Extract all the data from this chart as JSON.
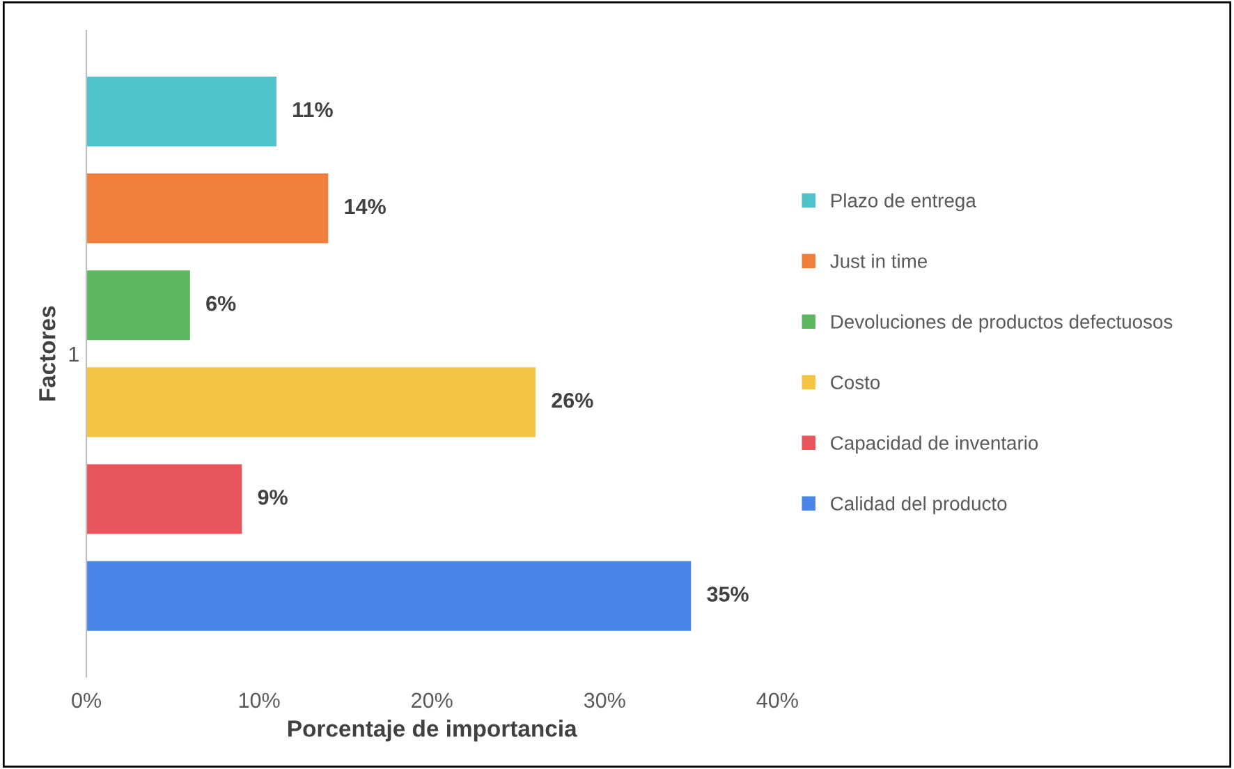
{
  "chart_data": {
    "type": "bar",
    "orientation": "horizontal",
    "xlabel": "Porcentaje de importancia",
    "ylabel": "Factores",
    "categories": [
      "1"
    ],
    "series": [
      {
        "name": "Plazo de entrega",
        "color": "#4fc3cc",
        "values": [
          11
        ],
        "value_labels": [
          "11%"
        ]
      },
      {
        "name": "Just in time",
        "color": "#f07f3c",
        "values": [
          14
        ],
        "value_labels": [
          "14%"
        ]
      },
      {
        "name": "Devoluciones de productos defectuosos",
        "color": "#5cb860",
        "values": [
          6
        ],
        "value_labels": [
          "6%"
        ]
      },
      {
        "name": "Costo",
        "color": "#f5c443",
        "values": [
          26
        ],
        "value_labels": [
          "26%"
        ]
      },
      {
        "name": "Capacidad de inventario",
        "color": "#e8555a",
        "values": [
          9
        ],
        "value_labels": [
          "9%"
        ]
      },
      {
        "name": "Calidad del producto",
        "color": "#4a86e8",
        "values": [
          35
        ],
        "value_labels": [
          "35%"
        ]
      }
    ],
    "xlim": [
      0,
      40
    ],
    "xticks": [
      {
        "value": 0,
        "label": "0%"
      },
      {
        "value": 10,
        "label": "10%"
      },
      {
        "value": 20,
        "label": "20%"
      },
      {
        "value": 30,
        "label": "30%"
      },
      {
        "value": 40,
        "label": "40%"
      }
    ],
    "grid": false,
    "legend": "right"
  }
}
